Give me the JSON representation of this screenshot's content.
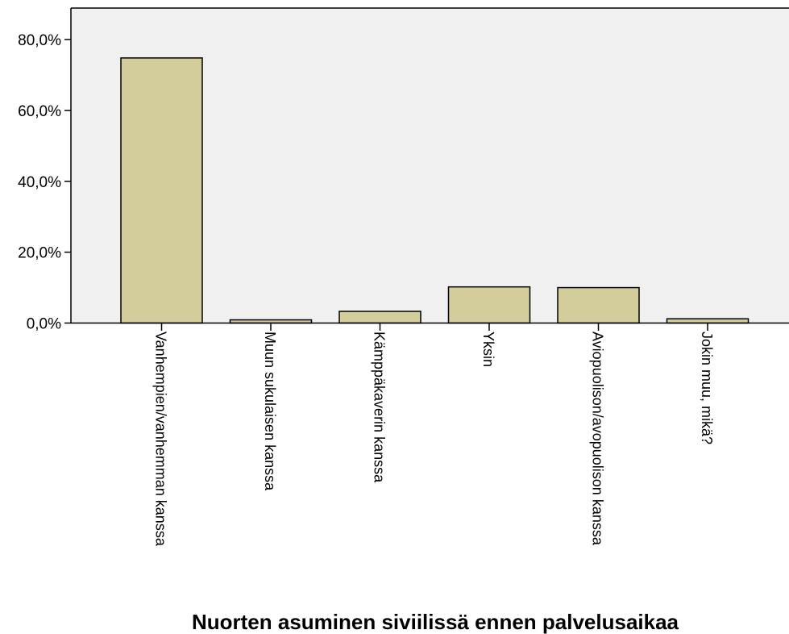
{
  "chart_data": {
    "type": "bar",
    "title": "",
    "xlabel": "Nuorten asuminen siviilissä ennen palvelusaikaa",
    "ylabel": "",
    "ylim": [
      0,
      80
    ],
    "y_ticks": [
      0,
      20,
      40,
      60,
      80
    ],
    "y_tick_labels": [
      "0,0%",
      "20,0%",
      "40,0%",
      "60,0%",
      "80,0%"
    ],
    "categories": [
      "Vanhempien/vanhemman kanssa",
      "Muun sukulaisen kanssa",
      "Kämppäkaverin kanssa",
      "Yksin",
      "Aviopuolison/avopuolison kanssa",
      "Jokin muu, mikä?"
    ],
    "values": [
      74.8,
      0.9,
      3.3,
      10.2,
      10.0,
      1.2
    ],
    "grid": false,
    "colors": {
      "bar_fill": "#d2cd9a",
      "bar_stroke": "#000000",
      "plot_background": "#f0f0f0"
    }
  }
}
